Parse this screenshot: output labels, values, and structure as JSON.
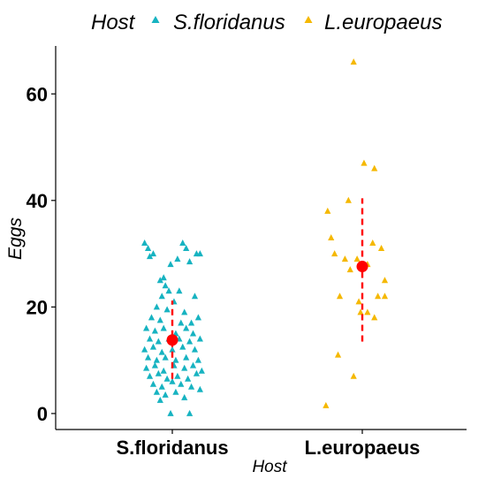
{
  "chart_data": {
    "type": "scatter",
    "title": "",
    "xlabel": "Host",
    "ylabel": "Eggs",
    "categories": [
      "S.floridanus",
      "L.europaeus"
    ],
    "y_ticks": [
      0,
      20,
      40,
      60
    ],
    "ylim": [
      -3,
      69
    ],
    "grid": false,
    "legend": {
      "title": "Host",
      "placement": "top",
      "entries": [
        "S.floridanus",
        "L.europaeus"
      ]
    },
    "colors": {
      "S.floridanus": "#17b3c1",
      "L.europaeus": "#f5b800",
      "summary": "#ff0000"
    },
    "series": [
      {
        "name": "S.floridanus",
        "category": "S.floridanus",
        "points": [
          {
            "x": -0.32,
            "y": 32
          },
          {
            "x": -0.28,
            "y": 31
          },
          {
            "x": -0.26,
            "y": 29.5
          },
          {
            "x": -0.22,
            "y": 30
          },
          {
            "x": -0.14,
            "y": 25
          },
          {
            "x": -0.1,
            "y": 25.5
          },
          {
            "x": -0.08,
            "y": 24
          },
          {
            "x": -0.02,
            "y": 28
          },
          {
            "x": 0.06,
            "y": 29
          },
          {
            "x": 0.12,
            "y": 32
          },
          {
            "x": 0.16,
            "y": 31
          },
          {
            "x": 0.2,
            "y": 28.5
          },
          {
            "x": 0.28,
            "y": 30
          },
          {
            "x": 0.32,
            "y": 30
          },
          {
            "x": -0.12,
            "y": 22
          },
          {
            "x": -0.04,
            "y": 23
          },
          {
            "x": 0.08,
            "y": 23
          },
          {
            "x": 0.26,
            "y": 22
          },
          {
            "x": -0.18,
            "y": 20
          },
          {
            "x": -0.06,
            "y": 19.5
          },
          {
            "x": 0.02,
            "y": 21
          },
          {
            "x": 0.14,
            "y": 19
          },
          {
            "x": -0.24,
            "y": 18
          },
          {
            "x": -0.14,
            "y": 17.5
          },
          {
            "x": 0.1,
            "y": 17
          },
          {
            "x": 0.22,
            "y": 17
          },
          {
            "x": 0.3,
            "y": 18
          },
          {
            "x": -0.3,
            "y": 16
          },
          {
            "x": -0.2,
            "y": 15.5
          },
          {
            "x": -0.1,
            "y": 16
          },
          {
            "x": 0.04,
            "y": 15
          },
          {
            "x": 0.16,
            "y": 16
          },
          {
            "x": 0.24,
            "y": 15
          },
          {
            "x": -0.26,
            "y": 14
          },
          {
            "x": -0.16,
            "y": 13.5
          },
          {
            "x": -0.04,
            "y": 14
          },
          {
            "x": 0.08,
            "y": 14
          },
          {
            "x": 0.2,
            "y": 13.5
          },
          {
            "x": 0.32,
            "y": 14
          },
          {
            "x": -0.32,
            "y": 12
          },
          {
            "x": -0.22,
            "y": 12.5
          },
          {
            "x": -0.12,
            "y": 11.5
          },
          {
            "x": 0.0,
            "y": 12
          },
          {
            "x": 0.12,
            "y": 12.5
          },
          {
            "x": 0.26,
            "y": 12
          },
          {
            "x": -0.28,
            "y": 10.5
          },
          {
            "x": -0.18,
            "y": 10
          },
          {
            "x": -0.08,
            "y": 10.5
          },
          {
            "x": 0.04,
            "y": 10
          },
          {
            "x": 0.16,
            "y": 10.5
          },
          {
            "x": 0.3,
            "y": 10
          },
          {
            "x": -0.3,
            "y": 8.5
          },
          {
            "x": -0.2,
            "y": 9
          },
          {
            "x": -0.1,
            "y": 8
          },
          {
            "x": 0.02,
            "y": 9
          },
          {
            "x": 0.14,
            "y": 8.5
          },
          {
            "x": 0.24,
            "y": 9
          },
          {
            "x": 0.34,
            "y": 8
          },
          {
            "x": -0.26,
            "y": 7
          },
          {
            "x": -0.16,
            "y": 7.5
          },
          {
            "x": -0.06,
            "y": 6.5
          },
          {
            "x": 0.06,
            "y": 7
          },
          {
            "x": 0.18,
            "y": 6.5
          },
          {
            "x": 0.28,
            "y": 7.5
          },
          {
            "x": -0.22,
            "y": 5.5
          },
          {
            "x": -0.12,
            "y": 5
          },
          {
            "x": 0.0,
            "y": 6
          },
          {
            "x": 0.1,
            "y": 5.5
          },
          {
            "x": 0.22,
            "y": 5
          },
          {
            "x": 0.32,
            "y": 4.5
          },
          {
            "x": -0.18,
            "y": 4
          },
          {
            "x": -0.08,
            "y": 3.5
          },
          {
            "x": 0.04,
            "y": 4
          },
          {
            "x": 0.14,
            "y": 3
          },
          {
            "x": -0.14,
            "y": 2.5
          },
          {
            "x": -0.02,
            "y": 0
          },
          {
            "x": 0.2,
            "y": 0
          }
        ]
      },
      {
        "name": "L.europaeus",
        "category": "L.europaeus",
        "points": [
          {
            "x": -0.1,
            "y": 66
          },
          {
            "x": 0.02,
            "y": 47
          },
          {
            "x": 0.14,
            "y": 46
          },
          {
            "x": -0.16,
            "y": 40
          },
          {
            "x": -0.4,
            "y": 38
          },
          {
            "x": -0.36,
            "y": 33
          },
          {
            "x": 0.12,
            "y": 32
          },
          {
            "x": -0.32,
            "y": 30
          },
          {
            "x": -0.06,
            "y": 29
          },
          {
            "x": -0.2,
            "y": 29
          },
          {
            "x": 0.06,
            "y": 28
          },
          {
            "x": 0.22,
            "y": 31
          },
          {
            "x": -0.14,
            "y": 27
          },
          {
            "x": 0.26,
            "y": 25
          },
          {
            "x": 0.18,
            "y": 22
          },
          {
            "x": 0.26,
            "y": 22
          },
          {
            "x": -0.26,
            "y": 22
          },
          {
            "x": -0.04,
            "y": 21
          },
          {
            "x": 0.06,
            "y": 19
          },
          {
            "x": 0.14,
            "y": 18
          },
          {
            "x": -0.02,
            "y": 19
          },
          {
            "x": -0.28,
            "y": 11
          },
          {
            "x": -0.1,
            "y": 7
          },
          {
            "x": -0.42,
            "y": 1.5
          }
        ]
      }
    ],
    "summary": [
      {
        "category": "S.floridanus",
        "mean": 13.8,
        "low": 6.5,
        "high": 21.2
      },
      {
        "category": "L.europaeus",
        "mean": 27.6,
        "low": 13.5,
        "high": 40.4
      }
    ]
  }
}
